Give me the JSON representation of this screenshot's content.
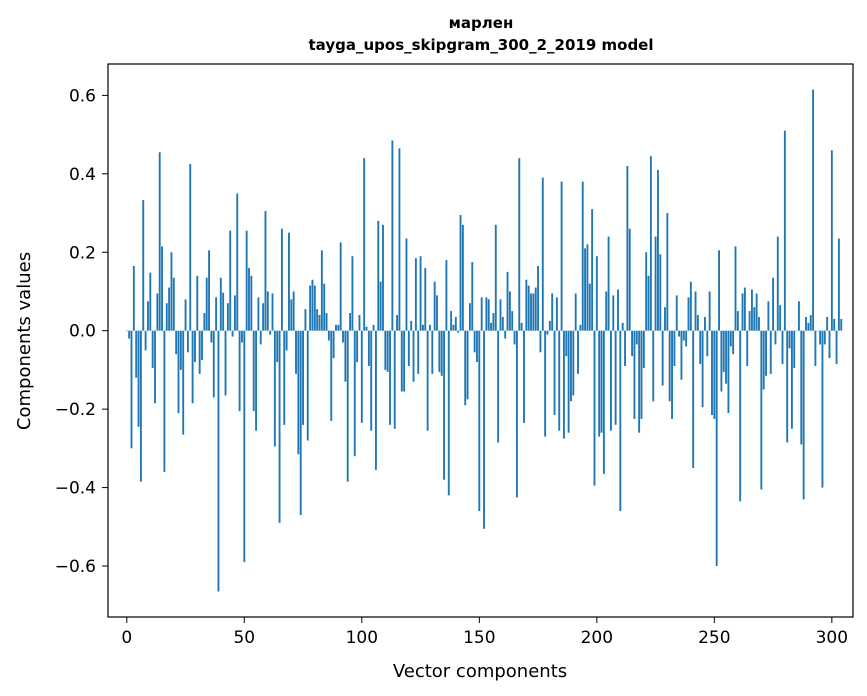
{
  "chart_data": {
    "type": "bar",
    "title": "марлен",
    "subtitle": "tayga_upos_skipgram_300_2_2019 model",
    "xlabel": "Vector components",
    "ylabel": "Components values",
    "xlim": [
      -8,
      309
    ],
    "ylim": [
      -0.73,
      0.68
    ],
    "xticks": [
      0,
      50,
      100,
      150,
      200,
      250,
      300
    ],
    "xtick_labels": [
      "0",
      "50",
      "100",
      "150",
      "200",
      "250",
      "300"
    ],
    "yticks": [
      -0.6,
      -0.4,
      -0.2,
      0.0,
      0.2,
      0.4,
      0.6
    ],
    "ytick_labels": [
      "−0.6",
      "−0.4",
      "−0.2",
      "0.0",
      "0.2",
      "0.4",
      "0.6"
    ],
    "bar_color": "#1f77b4",
    "grid": false,
    "values": [
      0.0,
      -0.02,
      -0.3,
      0.165,
      -0.12,
      -0.245,
      -0.385,
      0.333,
      -0.05,
      0.075,
      0.148,
      -0.095,
      -0.185,
      0.095,
      0.455,
      0.215,
      -0.36,
      0.07,
      0.11,
      0.2,
      0.135,
      -0.06,
      -0.21,
      -0.1,
      -0.265,
      0.08,
      -0.055,
      0.425,
      -0.185,
      -0.08,
      0.14,
      -0.11,
      -0.075,
      0.045,
      0.135,
      0.205,
      -0.03,
      -0.17,
      0.085,
      -0.665,
      0.135,
      0.097,
      -0.165,
      0.07,
      0.255,
      -0.015,
      0.09,
      0.35,
      -0.205,
      -0.03,
      -0.59,
      0.255,
      0.16,
      0.14,
      -0.205,
      -0.255,
      0.085,
      -0.035,
      0.07,
      0.305,
      0.1,
      -0.01,
      0.095,
      -0.295,
      -0.08,
      -0.49,
      0.26,
      -0.24,
      -0.05,
      0.25,
      0.08,
      0.1,
      -0.11,
      -0.315,
      -0.47,
      -0.24,
      0.055,
      -0.28,
      0.115,
      0.13,
      0.115,
      0.055,
      0.04,
      0.205,
      0.12,
      0.045,
      -0.025,
      -0.23,
      -0.07,
      0.015,
      0.015,
      0.225,
      -0.03,
      -0.13,
      -0.385,
      0.045,
      0.19,
      -0.32,
      -0.08,
      0.04,
      -0.235,
      0.44,
      0.01,
      -0.09,
      -0.255,
      0.015,
      -0.355,
      0.28,
      0.125,
      0.27,
      -0.1,
      -0.105,
      -0.24,
      0.485,
      -0.25,
      0.04,
      0.465,
      -0.155,
      -0.155,
      0.235,
      -0.09,
      0.025,
      -0.13,
      0.185,
      -0.11,
      0.19,
      0.015,
      0.16,
      -0.255,
      0.015,
      -0.11,
      0.125,
      0.09,
      -0.105,
      -0.115,
      -0.38,
      0.18,
      -0.42,
      0.05,
      0.015,
      0.035,
      -0.005,
      0.295,
      0.27,
      -0.19,
      -0.175,
      0.07,
      0.175,
      -0.055,
      -0.08,
      -0.46,
      0.085,
      -0.505,
      0.085,
      0.08,
      0.02,
      0.045,
      0.27,
      -0.285,
      0.08,
      0.035,
      -0.02,
      0.15,
      0.1,
      0.05,
      -0.035,
      -0.425,
      0.44,
      0.02,
      -0.235,
      0.13,
      0.115,
      0.095,
      0.095,
      0.11,
      0.165,
      -0.055,
      0.39,
      -0.27,
      -0.01,
      0.025,
      0.095,
      -0.215,
      0.085,
      -0.255,
      0.38,
      -0.275,
      -0.065,
      -0.26,
      -0.18,
      -0.165,
      0.095,
      -0.11,
      0.015,
      0.38,
      0.21,
      0.22,
      0.12,
      0.31,
      -0.395,
      0.19,
      -0.27,
      -0.26,
      -0.365,
      0.1,
      0.24,
      -0.255,
      0.09,
      -0.24,
      0.105,
      -0.46,
      0.02,
      -0.09,
      0.42,
      0.26,
      -0.065,
      -0.225,
      -0.035,
      -0.26,
      -0.225,
      -0.095,
      0.2,
      0.14,
      0.445,
      -0.18,
      0.24,
      0.41,
      0.195,
      -0.14,
      0.06,
      0.3,
      -0.18,
      -0.225,
      -0.09,
      0.09,
      -0.015,
      -0.125,
      -0.025,
      -0.04,
      0.085,
      0.125,
      -0.35,
      0.1,
      0.04,
      -0.085,
      -0.195,
      0.035,
      -0.065,
      0.1,
      -0.215,
      -0.225,
      -0.6,
      0.205,
      -0.155,
      -0.105,
      -0.135,
      -0.21,
      -0.04,
      -0.06,
      0.215,
      0.05,
      -0.435,
      0.095,
      0.11,
      -0.09,
      0.05,
      0.105,
      0.06,
      0.095,
      0.035,
      -0.405,
      -0.15,
      -0.115,
      0.075,
      -0.11,
      0.135,
      -0.035,
      0.24,
      0.065,
      -0.085,
      0.51,
      -0.285,
      -0.045,
      -0.25,
      -0.095,
      0.0,
      0.075,
      -0.29,
      -0.43,
      0.035,
      0.02,
      0.04,
      0.615,
      -0.09,
      0.0,
      -0.035,
      -0.4,
      -0.035,
      0.035,
      -0.07,
      0.46,
      0.03,
      -0.085,
      0.235,
      0.03
    ]
  }
}
